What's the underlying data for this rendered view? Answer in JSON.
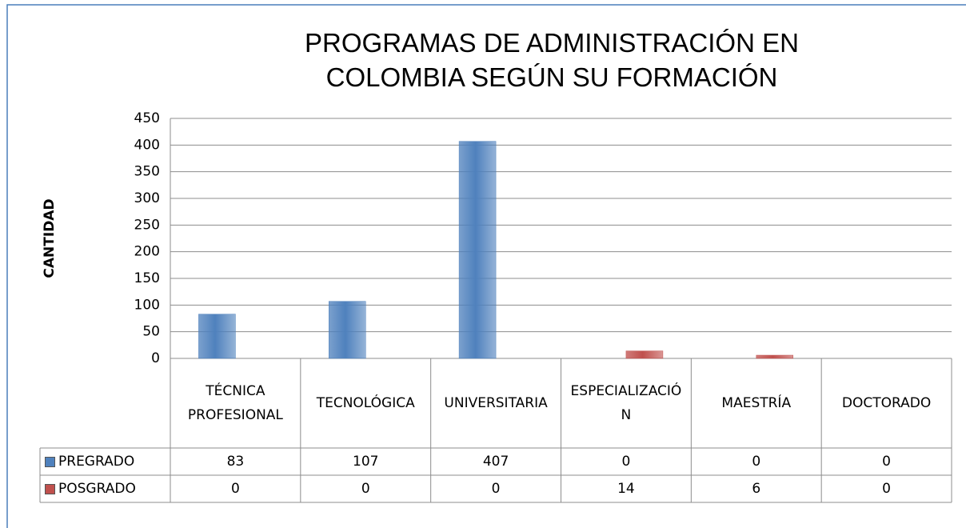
{
  "chart_data": {
    "type": "bar",
    "title": "PROGRAMAS DE ADMINISTRACIÓN EN COLOMBIA SEGÚN SU FORMACIÓN",
    "y_label": "CANTIDAD",
    "categories": [
      "TÉCNICA PROFESIONAL",
      "TECNOLÓGICA",
      "UNIVERSITARIA",
      "ESPECIALIZACIÓN",
      "MAESTRÍA",
      "DOCTORADO"
    ],
    "series": [
      {
        "name": "PREGRADO",
        "color": "#4f81bd",
        "values": [
          83,
          107,
          407,
          0,
          0,
          0
        ]
      },
      {
        "name": "POSGRADO",
        "color": "#c0504d",
        "values": [
          0,
          0,
          0,
          14,
          6,
          0
        ]
      }
    ],
    "ylim": [
      0,
      450
    ],
    "yticks": [
      0,
      50,
      100,
      150,
      200,
      250,
      300,
      350,
      400,
      450
    ],
    "grid": true,
    "data_table": true
  }
}
